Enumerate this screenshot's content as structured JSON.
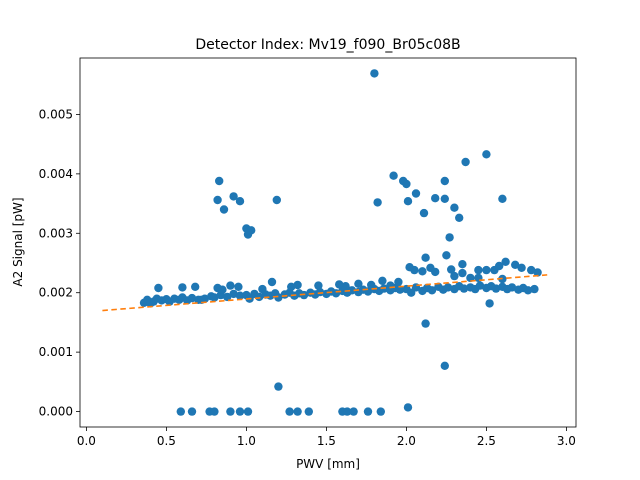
{
  "chart_data": {
    "type": "scatter",
    "title": "Detector Index: Mv19_f090_Br05c08B",
    "xlabel": "PWV [mm]",
    "ylabel": "A2 Signal [pW]",
    "xlim": [
      -0.04,
      3.06
    ],
    "ylim": [
      -0.00026,
      0.00595
    ],
    "xticks": [
      0.0,
      0.5,
      1.0,
      1.5,
      2.0,
      2.5,
      3.0
    ],
    "xtick_labels": [
      "0.0",
      "0.5",
      "1.0",
      "1.5",
      "2.0",
      "2.5",
      "3.0"
    ],
    "yticks": [
      0.0,
      0.001,
      0.002,
      0.003,
      0.004,
      0.005
    ],
    "ytick_labels": [
      "0.000",
      "0.001",
      "0.002",
      "0.003",
      "0.004",
      "0.005"
    ],
    "grid": false,
    "colors": {
      "points": "#1f77b4",
      "fit": "#ff7f0e"
    },
    "series": [
      {
        "name": "data",
        "kind": "scatter",
        "points": [
          [
            0.36,
            0.00183
          ],
          [
            0.38,
            0.00188
          ],
          [
            0.4,
            0.00182
          ],
          [
            0.42,
            0.00185
          ],
          [
            0.44,
            0.0019
          ],
          [
            0.47,
            0.00187
          ],
          [
            0.5,
            0.00189
          ],
          [
            0.52,
            0.00185
          ],
          [
            0.55,
            0.0019
          ],
          [
            0.58,
            0.00188
          ],
          [
            0.6,
            0.00192
          ],
          [
            0.63,
            0.00187
          ],
          [
            0.66,
            0.00191
          ],
          [
            0.7,
            0.00188
          ],
          [
            0.74,
            0.0019
          ],
          [
            0.78,
            0.00194
          ],
          [
            0.8,
            0.00192
          ],
          [
            0.84,
            0.00196
          ],
          [
            0.88,
            0.00193
          ],
          [
            0.92,
            0.00198
          ],
          [
            0.96,
            0.00195
          ],
          [
            1.0,
            0.00196
          ],
          [
            1.02,
            0.0019
          ],
          [
            1.05,
            0.00198
          ],
          [
            1.08,
            0.00193
          ],
          [
            1.12,
            0.00197
          ],
          [
            1.15,
            0.00195
          ],
          [
            1.18,
            0.00199
          ],
          [
            1.2,
            0.00192
          ],
          [
            1.24,
            0.00197
          ],
          [
            1.27,
            0.002
          ],
          [
            1.3,
            0.00195
          ],
          [
            1.33,
            0.00199
          ],
          [
            1.36,
            0.00196
          ],
          [
            1.4,
            0.002
          ],
          [
            1.43,
            0.00197
          ],
          [
            1.46,
            0.00201
          ],
          [
            1.5,
            0.00198
          ],
          [
            1.53,
            0.00202
          ],
          [
            1.56,
            0.00199
          ],
          [
            1.6,
            0.00203
          ],
          [
            1.63,
            0.002
          ],
          [
            1.66,
            0.00204
          ],
          [
            1.7,
            0.00201
          ],
          [
            1.73,
            0.00205
          ],
          [
            1.76,
            0.00202
          ],
          [
            1.8,
            0.00206
          ],
          [
            1.83,
            0.00203
          ],
          [
            1.86,
            0.00207
          ],
          [
            1.9,
            0.00204
          ],
          [
            1.93,
            0.00208
          ],
          [
            1.96,
            0.00205
          ],
          [
            2.0,
            0.00206
          ],
          [
            2.03,
            0.002
          ],
          [
            2.06,
            0.00209
          ],
          [
            2.1,
            0.00203
          ],
          [
            2.13,
            0.00208
          ],
          [
            2.16,
            0.00204
          ],
          [
            2.2,
            0.0021
          ],
          [
            2.23,
            0.00205
          ],
          [
            2.26,
            0.00209
          ],
          [
            2.3,
            0.00206
          ],
          [
            2.33,
            0.00211
          ],
          [
            2.36,
            0.00207
          ],
          [
            2.4,
            0.00209
          ],
          [
            2.43,
            0.00206
          ],
          [
            2.46,
            0.00212
          ],
          [
            2.5,
            0.00208
          ],
          [
            2.53,
            0.00211
          ],
          [
            2.56,
            0.00207
          ],
          [
            2.6,
            0.0021
          ],
          [
            2.63,
            0.00206
          ],
          [
            2.66,
            0.00209
          ],
          [
            2.7,
            0.00205
          ],
          [
            2.73,
            0.00208
          ],
          [
            2.76,
            0.00204
          ],
          [
            2.8,
            0.00206
          ],
          [
            2.82,
            0.00234
          ],
          [
            0.45,
            0.00208
          ],
          [
            0.6,
            0.00209
          ],
          [
            0.68,
            0.0021
          ],
          [
            0.82,
            0.00208
          ],
          [
            0.9,
            0.00212
          ],
          [
            1.1,
            0.00206
          ],
          [
            1.28,
            0.0021
          ],
          [
            1.45,
            0.00212
          ],
          [
            1.62,
            0.00211
          ],
          [
            1.78,
            0.00213
          ],
          [
            1.9,
            0.00212
          ],
          [
            2.05,
            0.00238
          ],
          [
            2.1,
            0.00236
          ],
          [
            2.18,
            0.00235
          ],
          [
            2.28,
            0.00239
          ],
          [
            2.35,
            0.00233
          ],
          [
            2.4,
            0.00225
          ],
          [
            2.45,
            0.00238
          ],
          [
            2.5,
            0.00238
          ],
          [
            2.55,
            0.00238
          ],
          [
            2.62,
            0.00252
          ],
          [
            2.68,
            0.00247
          ],
          [
            2.72,
            0.00242
          ],
          [
            2.78,
            0.00238
          ],
          [
            2.25,
            0.00263
          ],
          [
            2.35,
            0.00248
          ],
          [
            2.58,
            0.00245
          ],
          [
            2.12,
            0.00259
          ],
          [
            2.15,
            0.00242
          ],
          [
            2.3,
            0.00228
          ],
          [
            2.45,
            0.00225
          ],
          [
            2.6,
            0.00223
          ],
          [
            2.02,
            0.00243
          ],
          [
            1.95,
            0.00218
          ],
          [
            1.85,
            0.0022
          ],
          [
            1.7,
            0.00215
          ],
          [
            1.58,
            0.00214
          ],
          [
            1.32,
            0.00213
          ],
          [
            1.16,
            0.00218
          ],
          [
            0.72,
            0.00188
          ],
          [
            0.95,
            0.0021
          ],
          [
            0.85,
            0.00205
          ],
          [
            2.52,
            0.00182
          ],
          [
            2.12,
            0.00148
          ],
          [
            2.24,
            0.00077
          ],
          [
            1.2,
            0.00042
          ],
          [
            0.82,
            0.00356
          ],
          [
            0.83,
            0.00388
          ],
          [
            0.86,
            0.0034
          ],
          [
            0.92,
            0.00362
          ],
          [
            0.96,
            0.00354
          ],
          [
            1.0,
            0.00308
          ],
          [
            1.01,
            0.00298
          ],
          [
            1.03,
            0.00305
          ],
          [
            1.19,
            0.00356
          ],
          [
            1.8,
            0.00569
          ],
          [
            1.82,
            0.00352
          ],
          [
            1.92,
            0.00397
          ],
          [
            1.98,
            0.00388
          ],
          [
            2.0,
            0.00383
          ],
          [
            2.01,
            0.00354
          ],
          [
            2.06,
            0.00367
          ],
          [
            2.11,
            0.00334
          ],
          [
            2.18,
            0.00359
          ],
          [
            2.24,
            0.00388
          ],
          [
            2.24,
            0.00358
          ],
          [
            2.27,
            0.00293
          ],
          [
            2.3,
            0.00343
          ],
          [
            2.33,
            0.00326
          ],
          [
            2.37,
            0.0042
          ],
          [
            2.5,
            0.00433
          ],
          [
            2.6,
            0.00358
          ],
          [
            0.59,
            0.0
          ],
          [
            0.66,
            0.0
          ],
          [
            0.77,
            0.0
          ],
          [
            0.8,
            0.0
          ],
          [
            0.9,
            0.0
          ],
          [
            0.96,
            0.0
          ],
          [
            1.01,
            0.0
          ],
          [
            1.27,
            0.0
          ],
          [
            1.32,
            0.0
          ],
          [
            1.39,
            0.0
          ],
          [
            1.6,
            0.0
          ],
          [
            1.63,
            0.0
          ],
          [
            1.67,
            0.0
          ],
          [
            1.76,
            0.0
          ],
          [
            1.84,
            0.0
          ],
          [
            2.01,
            7e-05
          ]
        ]
      },
      {
        "name": "fit",
        "kind": "dashed-line",
        "points": [
          [
            0.1,
            0.0017
          ],
          [
            2.88,
            0.0023
          ]
        ]
      }
    ]
  }
}
